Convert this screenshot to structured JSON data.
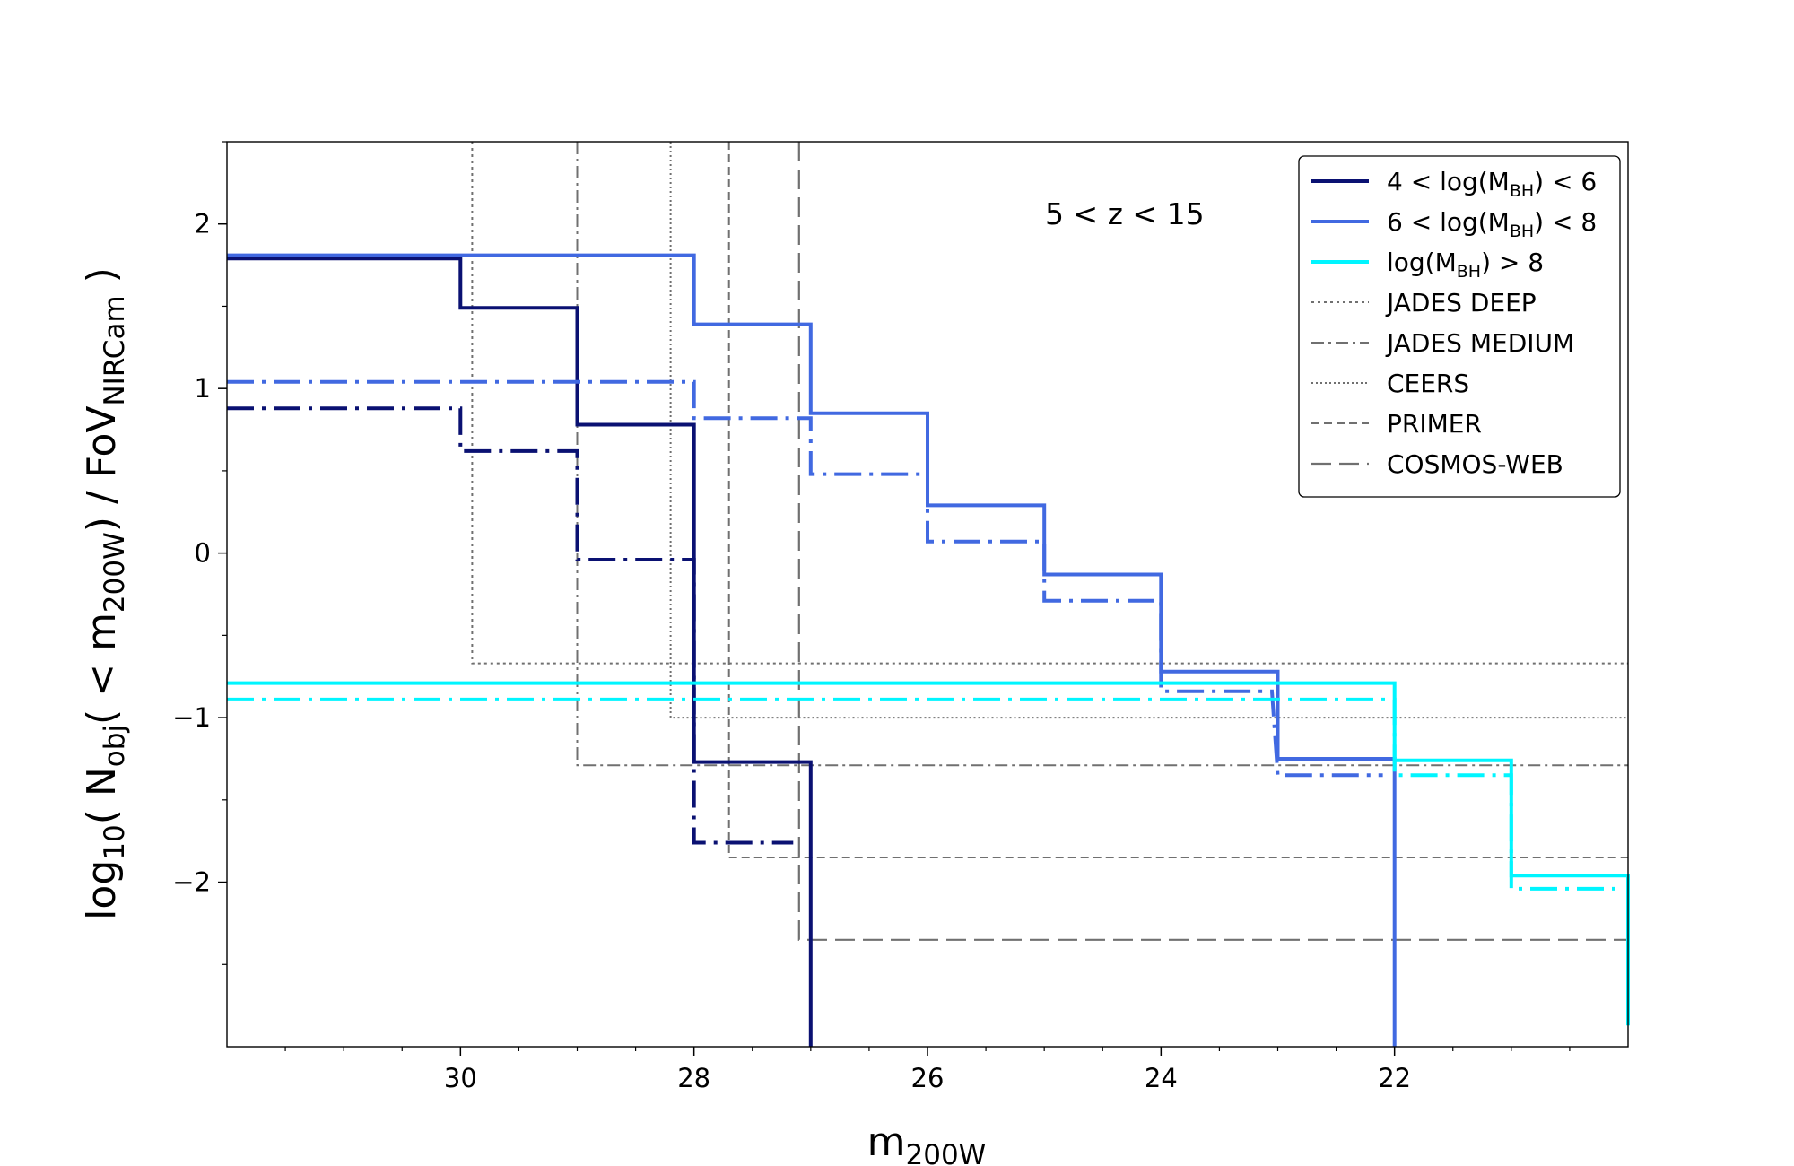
{
  "chart_data": {
    "type": "line",
    "title": "",
    "annotation": "5 < z < 15",
    "xlabel": {
      "base": "m",
      "sub": "200W"
    },
    "ylabel": {
      "parts": [
        {
          "t": "log"
        },
        {
          "t": "10",
          "sub": true
        },
        {
          "t": "( N"
        },
        {
          "t": "obj",
          "sub": true
        },
        {
          "t": "( < m"
        },
        {
          "t": "200W",
          "sub": true
        },
        {
          "t": ") / FoV"
        },
        {
          "t": "NIRCam",
          "sub": true
        },
        {
          "t": " )"
        }
      ]
    },
    "xlim": [
      32,
      20
    ],
    "ylim": [
      -3,
      2.5
    ],
    "xticks": [
      30,
      28,
      26,
      24,
      22
    ],
    "xtick_labels": [
      "30",
      "28",
      "26",
      "24",
      "22"
    ],
    "yticks": [
      2,
      1,
      0,
      -1,
      -2
    ],
    "ytick_labels": [
      "2",
      "1",
      "0",
      "−1",
      "−2"
    ],
    "colors": {
      "dark": "#0a1172",
      "mid": "#4169e1",
      "cyan": "#00f5ff",
      "gray": "#707070"
    },
    "series": [
      {
        "name": "4 < log(M_BH) < 6 solid",
        "color": "#0a1172",
        "style": "solid",
        "x": [
          32,
          30,
          30,
          29,
          29,
          28,
          28,
          27,
          27
        ],
        "y": [
          1.79,
          1.79,
          1.49,
          1.49,
          0.78,
          0.78,
          -1.27,
          -1.27,
          -3
        ]
      },
      {
        "name": "4 < log(M_BH) < 6 dashdot",
        "color": "#0a1172",
        "style": "dashdot",
        "x": [
          32,
          30,
          30,
          29,
          29,
          28,
          28,
          27.15
        ],
        "y": [
          0.88,
          0.88,
          0.62,
          0.62,
          -0.04,
          -0.04,
          -1.76,
          -1.76
        ]
      },
      {
        "name": "6 < log(M_BH) < 8 solid",
        "color": "#4169e1",
        "style": "solid",
        "x": [
          32,
          28,
          28,
          27,
          27,
          26,
          26,
          25,
          25,
          24,
          24,
          23,
          23,
          22,
          22
        ],
        "y": [
          1.81,
          1.81,
          1.39,
          1.39,
          0.85,
          0.85,
          0.29,
          0.29,
          -0.13,
          -0.13,
          -0.72,
          -0.72,
          -1.25,
          -1.25,
          -3
        ]
      },
      {
        "name": "6 < log(M_BH) < 8 dashdot",
        "color": "#4169e1",
        "style": "dashdot",
        "x": [
          32,
          28,
          28,
          27,
          27,
          26,
          26,
          25,
          25,
          24,
          24,
          23.05,
          23,
          22.1
        ],
        "y": [
          1.04,
          1.04,
          0.82,
          0.82,
          0.48,
          0.48,
          0.07,
          0.07,
          -0.29,
          -0.29,
          -0.84,
          -0.84,
          -1.35,
          -1.35
        ]
      },
      {
        "name": "log(M_BH) > 8 solid",
        "color": "#00f5ff",
        "style": "solid",
        "x": [
          32,
          22,
          22,
          21,
          21,
          20,
          20
        ],
        "y": [
          -0.79,
          -0.79,
          -1.26,
          -1.26,
          -1.96,
          -1.96,
          -2.87
        ]
      },
      {
        "name": "log(M_BH) > 8 dashdot",
        "color": "#00f5ff",
        "style": "dashdot",
        "x": [
          32,
          22,
          22,
          21,
          21,
          20.1
        ],
        "y": [
          -0.89,
          -0.89,
          -1.35,
          -1.35,
          -2.04,
          -2.04
        ]
      },
      {
        "name": "JADES DEEP",
        "color": "#707070",
        "style": "dotted",
        "x": [
          29.9,
          29.9,
          20
        ],
        "y": [
          2.5,
          -0.67,
          -0.67
        ]
      },
      {
        "name": "JADES MEDIUM",
        "color": "#707070",
        "style": "dashdotgray",
        "x": [
          29,
          29,
          20
        ],
        "y": [
          2.5,
          -1.29,
          -1.29
        ]
      },
      {
        "name": "CEERS",
        "color": "#707070",
        "style": "fine",
        "x": [
          28.2,
          28.2,
          20
        ],
        "y": [
          2.5,
          -1.0,
          -1.0
        ]
      },
      {
        "name": "PRIMER",
        "color": "#707070",
        "style": "dashed",
        "x": [
          27.7,
          27.7,
          20
        ],
        "y": [
          2.5,
          -1.85,
          -1.85
        ]
      },
      {
        "name": "COSMOS-WEB",
        "color": "#707070",
        "style": "longdash",
        "x": [
          27.1,
          27.1,
          20
        ],
        "y": [
          2.5,
          -2.35,
          -2.35
        ]
      }
    ],
    "legend": {
      "position": "top-right",
      "entries": [
        {
          "style": "solid",
          "color": "#0a1172",
          "pre": "4 < log(M",
          "sub": "BH",
          "post": ") < 6"
        },
        {
          "style": "solid",
          "color": "#4169e1",
          "pre": "6 < log(M",
          "sub": "BH",
          "post": ") < 8"
        },
        {
          "style": "solid",
          "color": "#00f5ff",
          "pre": "log(M",
          "sub": "BH",
          "post": ") > 8"
        },
        {
          "style": "dotted",
          "color": "#707070",
          "pre": "JADES DEEP",
          "sub": "",
          "post": ""
        },
        {
          "style": "dashdotgray",
          "color": "#707070",
          "pre": "JADES MEDIUM",
          "sub": "",
          "post": ""
        },
        {
          "style": "fine",
          "color": "#707070",
          "pre": "CEERS",
          "sub": "",
          "post": ""
        },
        {
          "style": "dashed",
          "color": "#707070",
          "pre": "PRIMER",
          "sub": "",
          "post": ""
        },
        {
          "style": "longdash",
          "color": "#707070",
          "pre": "COSMOS-WEB",
          "sub": "",
          "post": ""
        }
      ]
    }
  }
}
